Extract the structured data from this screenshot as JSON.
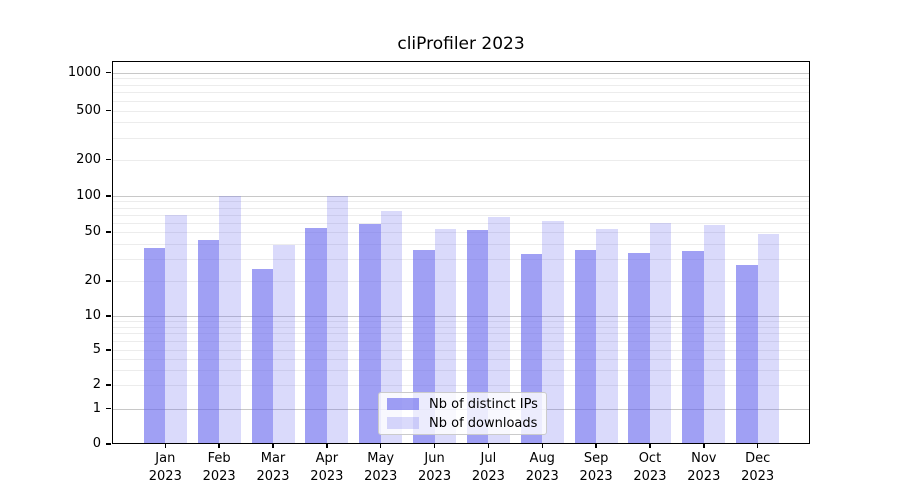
{
  "title": "cliProfiler 2023",
  "legend": {
    "items": [
      {
        "label": "Nb of distinct IPs",
        "color": "rgba(102,102,238,0.62)"
      },
      {
        "label": "Nb of downloads",
        "color": "rgba(102,102,238,0.24)"
      }
    ]
  },
  "colors": {
    "bar_distinct_ips": "rgba(102,102,238,0.62)",
    "bar_downloads": "rgba(102,102,238,0.24)",
    "grid_major": "#c8c8c8",
    "grid_minor": "#ececec",
    "spine": "#000000"
  },
  "y_axis": {
    "tick_labels": [
      "1000",
      "500",
      "200",
      "100",
      "50",
      "20",
      "10",
      "5",
      "2",
      "1",
      "0"
    ]
  },
  "x_axis": {
    "months": [
      "Jan",
      "Feb",
      "Mar",
      "Apr",
      "May",
      "Jun",
      "Jul",
      "Aug",
      "Sep",
      "Oct",
      "Nov",
      "Dec"
    ],
    "year": "2023"
  },
  "chart_data": {
    "type": "bar",
    "title": "cliProfiler 2023",
    "categories": [
      "Jan 2023",
      "Feb 2023",
      "Mar 2023",
      "Apr 2023",
      "May 2023",
      "Jun 2023",
      "Jul 2023",
      "Aug 2023",
      "Sep 2023",
      "Oct 2023",
      "Nov 2023",
      "Dec 2023"
    ],
    "series": [
      {
        "name": "Nb of distinct IPs",
        "values": [
          37,
          43,
          25,
          54,
          58,
          36,
          52,
          33,
          36,
          34,
          35,
          27
        ]
      },
      {
        "name": "Nb of downloads",
        "values": [
          70,
          100,
          39,
          100,
          75,
          53,
          67,
          62,
          53,
          60,
          57,
          48
        ]
      }
    ],
    "xlabel": "",
    "ylabel": "",
    "yscale": "symlog",
    "yticks": [
      0,
      1,
      2,
      5,
      10,
      20,
      50,
      100,
      200,
      500,
      1000
    ],
    "ylim": [
      0,
      1250
    ],
    "grid": "on",
    "legend_position": "lower center"
  }
}
